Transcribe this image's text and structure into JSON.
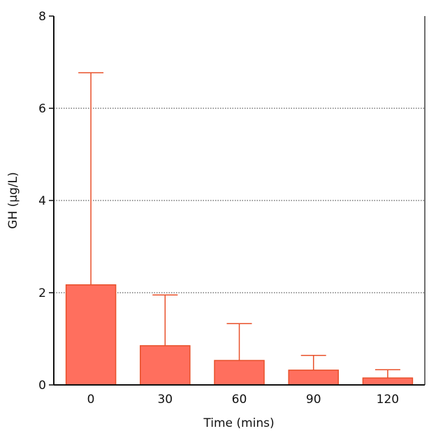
{
  "chart_data": {
    "type": "bar",
    "title": "",
    "xlabel": "Time (mins)",
    "ylabel": "GH (µg/L)",
    "categories": [
      "0",
      "30",
      "60",
      "90",
      "120"
    ],
    "values": [
      2.17,
      0.85,
      0.53,
      0.32,
      0.15
    ],
    "error_upper": [
      6.77,
      1.95,
      1.33,
      0.64,
      0.33
    ],
    "ylim": [
      0,
      8
    ],
    "yticks": [
      "0",
      "2",
      "4",
      "6",
      "8"
    ],
    "grid": "horizontal dotted at 2, 4, 6",
    "colors": {
      "fill": "#FF6F5E",
      "stroke": "#E8502A",
      "axis": "#111111",
      "grid": "#333333"
    }
  }
}
